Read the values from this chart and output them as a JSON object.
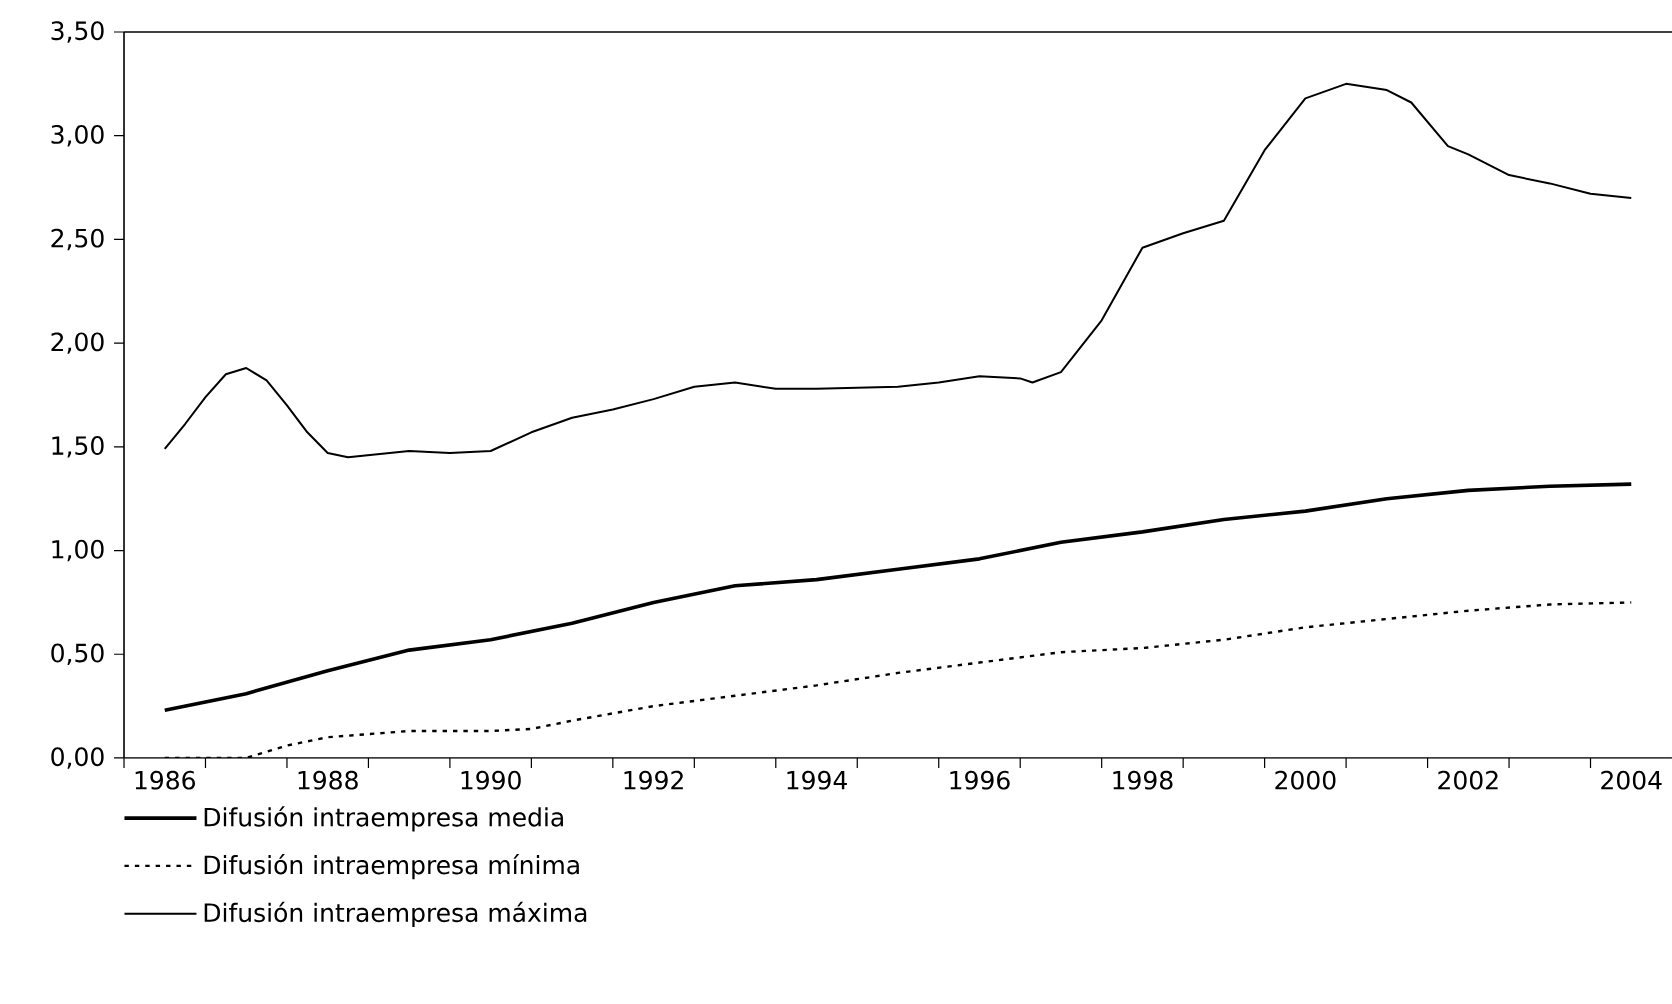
{
  "chart_data": {
    "type": "line",
    "xlim": [
      1985.5,
      2004.5
    ],
    "xticks": [
      {
        "value": 1985.5,
        "label": null
      },
      {
        "value": 1986,
        "label": "1986"
      },
      {
        "value": 1986.5,
        "label": null
      },
      {
        "value": 1987.5,
        "label": null
      },
      {
        "value": 1988,
        "label": "1988"
      },
      {
        "value": 1988.5,
        "label": null
      },
      {
        "value": 1989.5,
        "label": null
      },
      {
        "value": 1990,
        "label": "1990"
      },
      {
        "value": 1990.5,
        "label": null
      },
      {
        "value": 1991.5,
        "label": null
      },
      {
        "value": 1992,
        "label": "1992"
      },
      {
        "value": 1992.5,
        "label": null
      },
      {
        "value": 1993.5,
        "label": null
      },
      {
        "value": 1994,
        "label": "1994"
      },
      {
        "value": 1994.5,
        "label": null
      },
      {
        "value": 1995.5,
        "label": null
      },
      {
        "value": 1996,
        "label": "1996"
      },
      {
        "value": 1996.5,
        "label": null
      },
      {
        "value": 1997.5,
        "label": null
      },
      {
        "value": 1998,
        "label": "1998"
      },
      {
        "value": 1998.5,
        "label": null
      },
      {
        "value": 1999.5,
        "label": null
      },
      {
        "value": 2000,
        "label": "2000"
      },
      {
        "value": 2000.5,
        "label": null
      },
      {
        "value": 2001.5,
        "label": null
      },
      {
        "value": 2002,
        "label": "2002"
      },
      {
        "value": 2002.5,
        "label": null
      },
      {
        "value": 2003.5,
        "label": null
      },
      {
        "value": 2004,
        "label": "2004"
      }
    ],
    "ylim": [
      0,
      3.5
    ],
    "yticks": [
      {
        "value": 0,
        "label": "0,00"
      },
      {
        "value": 0.5,
        "label": "0,50"
      },
      {
        "value": 1,
        "label": "1,00"
      },
      {
        "value": 1.5,
        "label": "1,50"
      },
      {
        "value": 2,
        "label": "2,00"
      },
      {
        "value": 2.5,
        "label": "2,50"
      },
      {
        "value": 3,
        "label": "3,00"
      },
      {
        "value": 3.5,
        "label": "3,50"
      }
    ],
    "legend": "bottom left",
    "marker": "none",
    "grid": false,
    "series": [
      {
        "name": "Difusión intraempresa media",
        "color": "#000000",
        "line_style": "solid",
        "x": [
          1986,
          1987,
          1988,
          1989,
          1990,
          1991,
          1992,
          1993,
          1994,
          1995,
          1996,
          1997,
          1998,
          1999,
          2000,
          2001,
          2002,
          2003,
          2004
        ],
        "values": [
          0.23,
          0.31,
          0.42,
          0.52,
          0.57,
          0.65,
          0.75,
          0.83,
          0.86,
          0.91,
          0.96,
          1.04,
          1.09,
          1.15,
          1.19,
          1.25,
          1.29,
          1.31,
          1.32
        ]
      },
      {
        "name": "Difusión intraempresa mínima",
        "color": "#000000",
        "line_style": "dashed",
        "x": [
          1986,
          1987,
          1987.5,
          1988,
          1989,
          1990,
          1990.5,
          1991,
          1992,
          1993,
          1994,
          1995,
          1996,
          1997,
          1998,
          1999,
          2000,
          2001,
          2002,
          2003,
          2004
        ],
        "values": [
          0.0,
          0.0,
          0.06,
          0.1,
          0.13,
          0.13,
          0.14,
          0.18,
          0.25,
          0.3,
          0.35,
          0.41,
          0.46,
          0.51,
          0.53,
          0.57,
          0.63,
          0.67,
          0.71,
          0.74,
          0.75
        ]
      },
      {
        "name": "Difusión intraempresa máxima",
        "color": "#000000",
        "line_style": "solid",
        "x": [
          1986,
          1986.25,
          1986.5,
          1986.75,
          1987,
          1987.25,
          1987.5,
          1987.75,
          1988,
          1988.25,
          1989,
          1989.5,
          1990,
          1990.5,
          1991,
          1991.5,
          1992,
          1992.5,
          1993,
          1993.5,
          1994,
          1995,
          1995.5,
          1996,
          1996.5,
          1996.65,
          1997,
          1997.5,
          1998,
          1998.5,
          1999,
          1999.5,
          2000,
          2000.5,
          2001,
          2001.3,
          2001.75,
          2002,
          2002.5,
          2003,
          2003.5,
          2004
        ],
        "values": [
          1.49,
          1.61,
          1.74,
          1.85,
          1.88,
          1.82,
          1.7,
          1.57,
          1.47,
          1.45,
          1.48,
          1.47,
          1.48,
          1.57,
          1.64,
          1.68,
          1.73,
          1.79,
          1.81,
          1.78,
          1.78,
          1.79,
          1.81,
          1.84,
          1.83,
          1.81,
          1.86,
          2.11,
          2.46,
          2.53,
          2.59,
          2.93,
          3.18,
          3.25,
          3.22,
          3.16,
          2.95,
          2.91,
          2.81,
          2.77,
          2.72,
          2.7
        ]
      }
    ]
  }
}
